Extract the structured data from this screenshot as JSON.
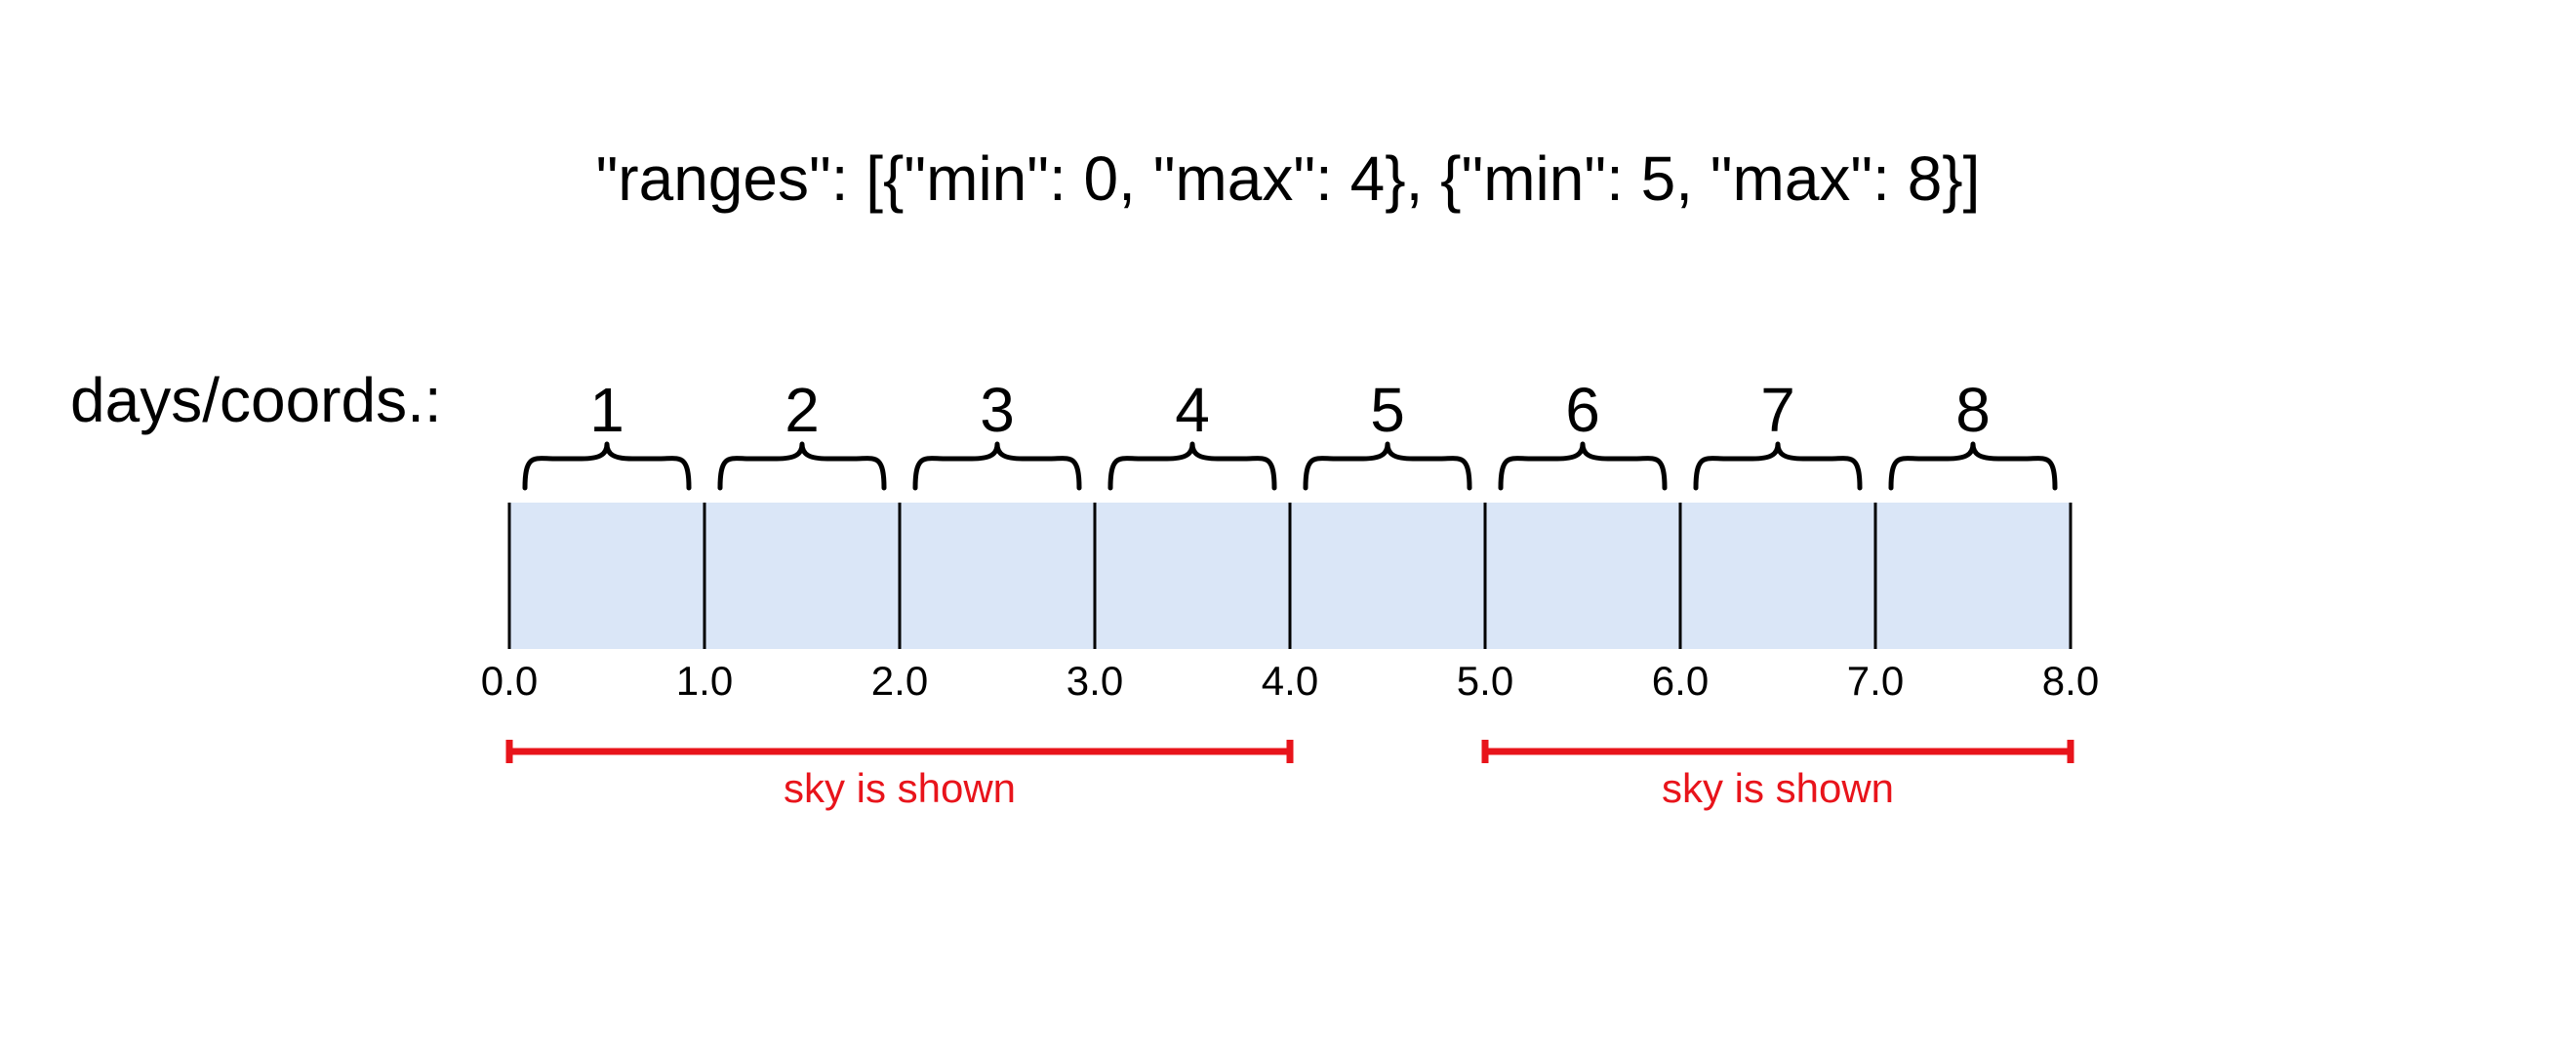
{
  "title": "\"ranges\": [{\"min\": 0, \"max\": 4}, {\"min\": 5, \"max\": 8}]",
  "row_label": "days/coords.:",
  "days": [
    "1",
    "2",
    "3",
    "4",
    "5",
    "6",
    "7",
    "8"
  ],
  "ticks": [
    "0.0",
    "1.0",
    "2.0",
    "3.0",
    "4.0",
    "5.0",
    "6.0",
    "7.0",
    "8.0"
  ],
  "coord_min": 0,
  "coord_max": 8,
  "ranges": [
    {
      "min": 0,
      "max": 4,
      "label": "sky is shown"
    },
    {
      "min": 5,
      "max": 8,
      "label": "sky is shown"
    }
  ],
  "colors": {
    "cell_fill": "#dae6f7",
    "divider": "#000000",
    "range": "#e8141b",
    "text": "#000000"
  }
}
